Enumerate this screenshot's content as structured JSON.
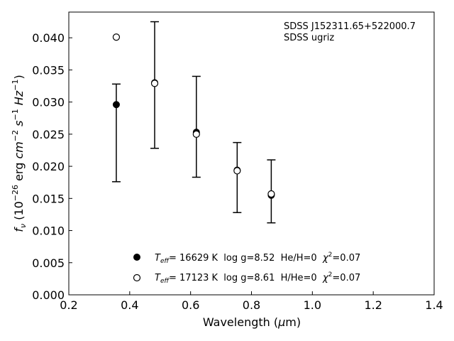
{
  "chart_data": {
    "type": "scatter",
    "xlabel_prefix": "Wavelength (",
    "xlabel_mu": "μ",
    "xlabel_suffix": "m)",
    "ylabel_f": "f",
    "ylabel_nu": "ν",
    "ylabel_open": " (10",
    "ylabel_exp1": "−26",
    "ylabel_erg": " erg ",
    "ylabel_cm": "cm",
    "ylabel_exp2": "−2",
    "ylabel_s": " s",
    "ylabel_exp3": "−1",
    "ylabel_hz": " Hz",
    "ylabel_close": ")",
    "xlim": [
      0.2,
      1.4
    ],
    "ylim": [
      0.0,
      0.044
    ],
    "xticks": [
      {
        "value": 0.2,
        "label": "0.2"
      },
      {
        "value": 0.4,
        "label": "0.4"
      },
      {
        "value": 0.6,
        "label": "0.6"
      },
      {
        "value": 0.8,
        "label": "0.8"
      },
      {
        "value": 1.0,
        "label": "1.0"
      },
      {
        "value": 1.2,
        "label": "1.2"
      },
      {
        "value": 1.4,
        "label": "1.4"
      }
    ],
    "yticks": [
      {
        "value": 0.0,
        "label": "0.000"
      },
      {
        "value": 0.005,
        "label": "0.005"
      },
      {
        "value": 0.01,
        "label": "0.010"
      },
      {
        "value": 0.015,
        "label": "0.015"
      },
      {
        "value": 0.02,
        "label": "0.020"
      },
      {
        "value": 0.025,
        "label": "0.025"
      },
      {
        "value": 0.03,
        "label": "0.030"
      },
      {
        "value": 0.035,
        "label": "0.035"
      },
      {
        "value": 0.04,
        "label": "0.040"
      }
    ],
    "annotation": [
      "SDSS J152311.65+522000.7",
      "SDSS ugriz"
    ],
    "observed": {
      "x": [
        0.356,
        0.482,
        0.619,
        0.753,
        0.865
      ],
      "y": [
        0.0295,
        0.0328,
        0.0252,
        0.0193,
        0.0155
      ],
      "err_low": [
        0.0176,
        0.0228,
        0.0183,
        0.0128,
        0.0112
      ],
      "err_high": [
        0.0328,
        0.0425,
        0.034,
        0.0237,
        0.021
      ]
    },
    "series": [
      {
        "marker": "filled",
        "x": [
          0.356,
          0.482,
          0.619,
          0.753,
          0.865
        ],
        "y": [
          0.0296,
          0.033,
          0.0253,
          0.0194,
          0.0155
        ]
      },
      {
        "marker": "open",
        "x": [
          0.356,
          0.482,
          0.619,
          0.753,
          0.865
        ],
        "y": [
          0.0401,
          0.0329,
          0.025,
          0.0193,
          0.0157
        ]
      }
    ],
    "legend": [
      {
        "marker": "filled",
        "t": "T",
        "t_sub": "eff",
        "rest": "= 16629 K  log g=8.52  He/H=0  ",
        "chi": "χ",
        "chi_sup": "2",
        "chi_rest": "=0.07"
      },
      {
        "marker": "open",
        "t": "T",
        "t_sub": "eff",
        "rest": "= 17123 K  log g=8.61  H/He=0  ",
        "chi": "χ",
        "chi_sup": "2",
        "chi_rest": "=0.07"
      }
    ],
    "legend_placement": "lower-center",
    "grid": false
  }
}
